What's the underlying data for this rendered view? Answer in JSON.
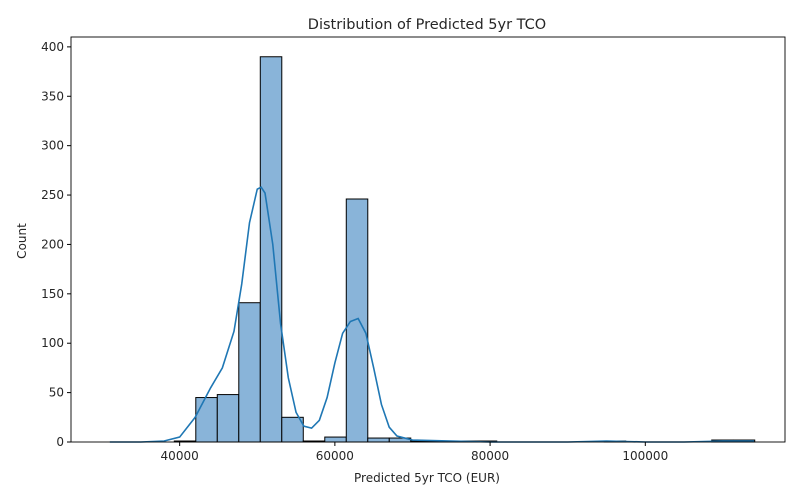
{
  "chart_data": {
    "type": "bar",
    "title": "Distribution of Predicted 5yr TCO",
    "xlabel": "Predicted 5yr TCO (EUR)",
    "ylabel": "Count",
    "xlim": [
      26000,
      118000
    ],
    "ylim": [
      0,
      410
    ],
    "xticks": [
      40000,
      60000,
      80000,
      100000
    ],
    "yticks": [
      0,
      50,
      100,
      150,
      200,
      250,
      300,
      350,
      400
    ],
    "grid": false,
    "bins": [
      {
        "x0": 31000,
        "x1": 33770,
        "count": 0
      },
      {
        "x0": 33770,
        "x1": 36540,
        "count": 0
      },
      {
        "x0": 36540,
        "x1": 39310,
        "count": 0
      },
      {
        "x0": 39310,
        "x1": 42080,
        "count": 1
      },
      {
        "x0": 42080,
        "x1": 44850,
        "count": 45
      },
      {
        "x0": 44850,
        "x1": 47620,
        "count": 48
      },
      {
        "x0": 47620,
        "x1": 50390,
        "count": 141
      },
      {
        "x0": 50390,
        "x1": 53160,
        "count": 390
      },
      {
        "x0": 53160,
        "x1": 55930,
        "count": 25
      },
      {
        "x0": 55930,
        "x1": 58700,
        "count": 1
      },
      {
        "x0": 58700,
        "x1": 61470,
        "count": 5
      },
      {
        "x0": 61470,
        "x1": 64240,
        "count": 246
      },
      {
        "x0": 64240,
        "x1": 67010,
        "count": 4
      },
      {
        "x0": 67010,
        "x1": 69780,
        "count": 4
      },
      {
        "x0": 69780,
        "x1": 72550,
        "count": 1
      },
      {
        "x0": 72550,
        "x1": 75320,
        "count": 1
      },
      {
        "x0": 75320,
        "x1": 78090,
        "count": 1
      },
      {
        "x0": 78090,
        "x1": 80860,
        "count": 1
      },
      {
        "x0": 80860,
        "x1": 83630,
        "count": 0
      },
      {
        "x0": 83630,
        "x1": 86400,
        "count": 0
      },
      {
        "x0": 86400,
        "x1": 89170,
        "count": 0
      },
      {
        "x0": 89170,
        "x1": 91940,
        "count": 0
      },
      {
        "x0": 91940,
        "x1": 94710,
        "count": 0
      },
      {
        "x0": 94710,
        "x1": 97480,
        "count": 1
      },
      {
        "x0": 97480,
        "x1": 100250,
        "count": 0
      },
      {
        "x0": 100250,
        "x1": 103020,
        "count": 0
      },
      {
        "x0": 103020,
        "x1": 105790,
        "count": 0
      },
      {
        "x0": 105790,
        "x1": 108560,
        "count": 0
      },
      {
        "x0": 108560,
        "x1": 111330,
        "count": 2
      },
      {
        "x0": 111330,
        "x1": 114100,
        "count": 2
      }
    ],
    "kde": {
      "x": [
        31000,
        35000,
        38000,
        40000,
        42000,
        44000,
        45500,
        47000,
        48000,
        49000,
        50000,
        50500,
        51000,
        52000,
        53000,
        54000,
        55000,
        56000,
        57000,
        58000,
        59000,
        60000,
        61000,
        62000,
        63000,
        64000,
        65000,
        66000,
        67000,
        68000,
        70000,
        75000,
        80000,
        85000,
        90000,
        95000,
        100000,
        105000,
        110000,
        114000
      ],
      "y": [
        0,
        0,
        1,
        5,
        25,
        55,
        75,
        112,
        160,
        222,
        256,
        258,
        252,
        200,
        120,
        65,
        30,
        16,
        14,
        22,
        45,
        80,
        110,
        122,
        125,
        110,
        75,
        38,
        15,
        6,
        2,
        1,
        0,
        0,
        0,
        1,
        0,
        0,
        1,
        1
      ]
    },
    "colors": {
      "bar_fill": "#89b4d9",
      "bar_edge": "#000000",
      "kde_line": "#1f77b4",
      "axis": "#000000",
      "text": "#262626"
    }
  }
}
